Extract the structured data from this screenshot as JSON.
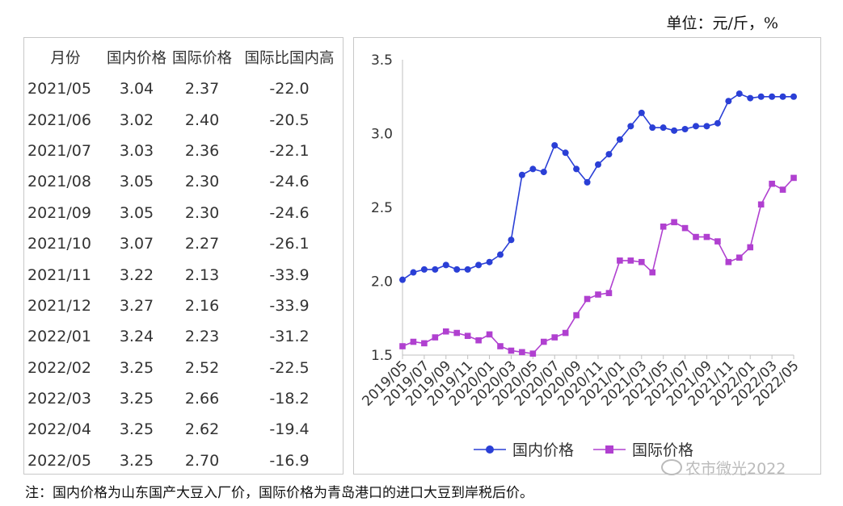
{
  "unit_label": "单位：元/斤，%",
  "table": {
    "headers": [
      "月份",
      "国内价格",
      "国际价格",
      "国际比国内高"
    ],
    "rows": [
      [
        "2021/05",
        "3.04",
        "2.37",
        "-22.0"
      ],
      [
        "2021/06",
        "3.02",
        "2.40",
        "-20.5"
      ],
      [
        "2021/07",
        "3.03",
        "2.36",
        "-22.1"
      ],
      [
        "2021/08",
        "3.05",
        "2.30",
        "-24.6"
      ],
      [
        "2021/09",
        "3.05",
        "2.30",
        "-24.6"
      ],
      [
        "2021/10",
        "3.07",
        "2.27",
        "-26.1"
      ],
      [
        "2021/11",
        "3.22",
        "2.13",
        "-33.9"
      ],
      [
        "2021/12",
        "3.27",
        "2.16",
        "-33.9"
      ],
      [
        "2022/01",
        "3.24",
        "2.23",
        "-31.2"
      ],
      [
        "2022/02",
        "3.25",
        "2.52",
        "-22.5"
      ],
      [
        "2022/03",
        "3.25",
        "2.66",
        "-18.2"
      ],
      [
        "2022/04",
        "3.25",
        "2.62",
        "-19.4"
      ],
      [
        "2022/05",
        "3.25",
        "2.70",
        "-16.9"
      ]
    ]
  },
  "chart_data": {
    "type": "line",
    "x": [
      "2019/05",
      "2019/06",
      "2019/07",
      "2019/08",
      "2019/09",
      "2019/10",
      "2019/11",
      "2019/12",
      "2020/01",
      "2020/02",
      "2020/03",
      "2020/04",
      "2020/05",
      "2020/06",
      "2020/07",
      "2020/08",
      "2020/09",
      "2020/10",
      "2020/11",
      "2020/12",
      "2021/01",
      "2021/02",
      "2021/03",
      "2021/04",
      "2021/05",
      "2021/06",
      "2021/07",
      "2021/08",
      "2021/09",
      "2021/10",
      "2021/11",
      "2021/12",
      "2022/01",
      "2022/02",
      "2022/03",
      "2022/04",
      "2022/05"
    ],
    "xtick_labels": [
      "2019/05",
      "2019/07",
      "2019/09",
      "2019/11",
      "2020/01",
      "2020/03",
      "2020/05",
      "2020/07",
      "2020/09",
      "2020/11",
      "2021/01",
      "2021/03",
      "2021/05",
      "2021/07",
      "2021/09",
      "2021/11",
      "2022/01",
      "2022/03",
      "2022/05"
    ],
    "ylim": [
      1.5,
      3.5
    ],
    "yticks": [
      "1.5",
      "2.0",
      "2.5",
      "3.0",
      "3.5"
    ],
    "grid": false,
    "legend_position": "bottom",
    "series": [
      {
        "name": "国内价格",
        "color": "#2a3fd6",
        "marker": "circle",
        "values": [
          2.01,
          2.06,
          2.08,
          2.08,
          2.11,
          2.08,
          2.08,
          2.11,
          2.13,
          2.18,
          2.28,
          2.72,
          2.76,
          2.74,
          2.92,
          2.87,
          2.76,
          2.67,
          2.79,
          2.86,
          2.96,
          3.05,
          3.14,
          3.04,
          3.04,
          3.02,
          3.03,
          3.05,
          3.05,
          3.07,
          3.22,
          3.27,
          3.24,
          3.25,
          3.25,
          3.25,
          3.25
        ]
      },
      {
        "name": "国际价格",
        "color": "#b040d0",
        "marker": "square",
        "values": [
          1.56,
          1.59,
          1.58,
          1.62,
          1.66,
          1.65,
          1.63,
          1.6,
          1.64,
          1.56,
          1.53,
          1.52,
          1.51,
          1.59,
          1.62,
          1.65,
          1.77,
          1.88,
          1.91,
          1.92,
          2.14,
          2.14,
          2.13,
          2.06,
          2.37,
          2.4,
          2.36,
          2.3,
          2.3,
          2.27,
          2.13,
          2.16,
          2.23,
          2.52,
          2.66,
          2.62,
          2.7
        ]
      }
    ]
  },
  "note": "注：国内价格为山东国产大豆入厂价，国际价格为青岛港口的进口大豆到岸税后价。",
  "watermark": "农市微光2022"
}
